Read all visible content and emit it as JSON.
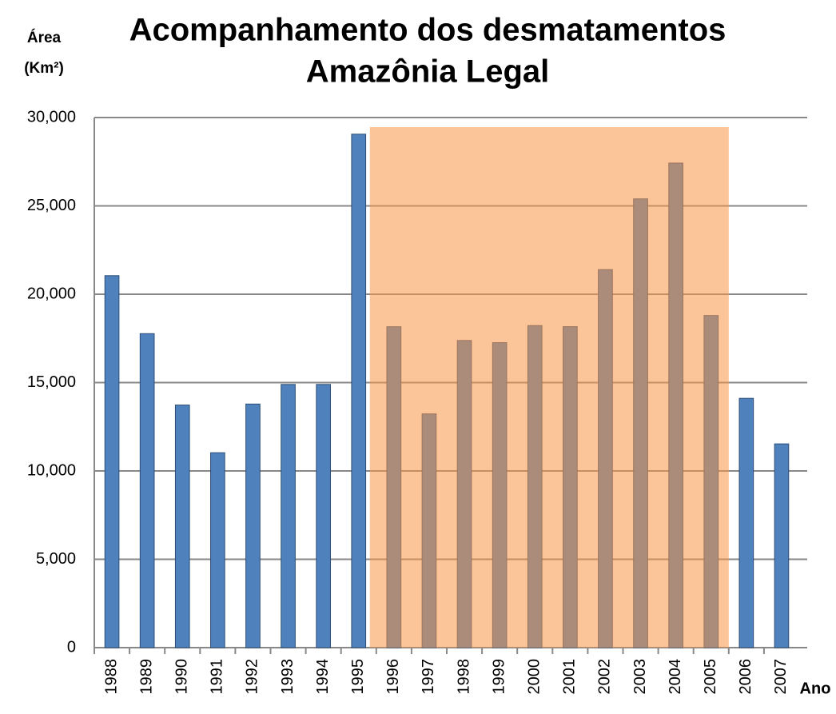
{
  "chart_data": {
    "type": "bar",
    "title": [
      "Acompanhamento dos desmatamentos",
      "Amazônia Legal"
    ],
    "ylabel": [
      "Área",
      "(Km²)"
    ],
    "xlabel": "Ano",
    "categories": [
      "1988",
      "1989",
      "1990",
      "1991",
      "1992",
      "1993",
      "1994",
      "1995",
      "1996",
      "1997",
      "1998",
      "1999",
      "2000",
      "2001",
      "2002",
      "2003",
      "2004",
      "2005",
      "2006",
      "2007"
    ],
    "values": [
      21050,
      17770,
      13730,
      11030,
      13786,
      14896,
      14896,
      29059,
      18161,
      13227,
      17383,
      17259,
      18226,
      18165,
      21394,
      25396,
      27423,
      18793,
      14109,
      11532
    ],
    "color": "#4f81bd",
    "highlight": {
      "from": 8,
      "to": 17,
      "color": "#f79646"
    },
    "ylim": [
      0,
      30000
    ],
    "yticks": [
      0,
      {
        "value": 5000,
        "label": "5,000"
      },
      {
        "value": 10000,
        "label": "10,000"
      },
      {
        "value": 15000,
        "label": "15,000"
      },
      {
        "value": 20000,
        "label": "20,000"
      },
      {
        "value": 25000,
        "label": "25,000"
      },
      {
        "value": 30000,
        "label": "30,000"
      }
    ],
    "grid": true
  }
}
